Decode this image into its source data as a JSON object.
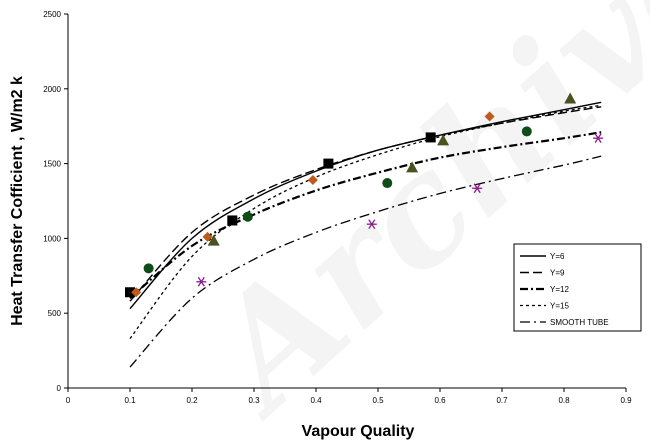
{
  "watermark": "Archive of SID",
  "chart_data": {
    "type": "line",
    "xlabel": "Vapour Quality",
    "ylabel": "Heat Transfer Cofficient , W/m2 k",
    "xlim": [
      0,
      0.9
    ],
    "ylim": [
      0,
      2500
    ],
    "x_ticks": [
      "0",
      "0.1",
      "0.2",
      "0.3",
      "0.4",
      "0.5",
      "0.6",
      "0.7",
      "0.8",
      "0.9"
    ],
    "y_ticks": [
      "0",
      "500",
      "1000",
      "1500",
      "2000",
      "2500"
    ],
    "grid": false,
    "legend_position": "right",
    "series": [
      {
        "name": "Y=6",
        "dash": "solid",
        "marker": "square",
        "marker_color": "#000000",
        "points": [
          [
            0.1,
            640
          ],
          [
            0.265,
            1120
          ],
          [
            0.42,
            1500
          ],
          [
            0.585,
            1675
          ]
        ],
        "fit": [
          [
            0.1,
            530
          ],
          [
            0.2,
            1000
          ],
          [
            0.3,
            1265
          ],
          [
            0.4,
            1450
          ],
          [
            0.5,
            1590
          ],
          [
            0.6,
            1690
          ],
          [
            0.7,
            1780
          ],
          [
            0.8,
            1860
          ],
          [
            0.86,
            1910
          ]
        ]
      },
      {
        "name": "Y=9",
        "dash": "long-dash",
        "marker": "diamond",
        "marker_color": "#c05a1c",
        "points": [
          [
            0.11,
            640
          ],
          [
            0.225,
            1010
          ],
          [
            0.395,
            1390
          ],
          [
            0.68,
            1815
          ]
        ],
        "fit": [
          [
            0.1,
            580
          ],
          [
            0.2,
            1040
          ],
          [
            0.3,
            1290
          ],
          [
            0.4,
            1460
          ],
          [
            0.5,
            1590
          ],
          [
            0.6,
            1690
          ],
          [
            0.7,
            1770
          ],
          [
            0.8,
            1840
          ],
          [
            0.86,
            1880
          ]
        ]
      },
      {
        "name": "Y=12",
        "dash": "dash-dot",
        "marker": "circle",
        "marker_color": "#0e4d18",
        "points": [
          [
            0.13,
            800
          ],
          [
            0.29,
            1145
          ],
          [
            0.515,
            1370
          ],
          [
            0.74,
            1715
          ]
        ],
        "fit": [
          [
            0.1,
            600
          ],
          [
            0.2,
            950
          ],
          [
            0.3,
            1160
          ],
          [
            0.4,
            1320
          ],
          [
            0.5,
            1440
          ],
          [
            0.6,
            1540
          ],
          [
            0.7,
            1610
          ],
          [
            0.8,
            1670
          ],
          [
            0.86,
            1710
          ]
        ]
      },
      {
        "name": "Y=15",
        "dash": "dotted",
        "marker": "triangle",
        "marker_color": "#4a5220",
        "points": [
          [
            0.235,
            985
          ],
          [
            0.555,
            1475
          ],
          [
            0.605,
            1655
          ],
          [
            0.81,
            1935
          ]
        ],
        "fit": [
          [
            0.1,
            330
          ],
          [
            0.2,
            880
          ],
          [
            0.3,
            1200
          ],
          [
            0.4,
            1410
          ],
          [
            0.5,
            1560
          ],
          [
            0.6,
            1680
          ],
          [
            0.7,
            1770
          ],
          [
            0.8,
            1850
          ],
          [
            0.86,
            1890
          ]
        ]
      },
      {
        "name": "SMOOTH TUBE",
        "dash": "long-dash-dot",
        "marker": "asterisk",
        "marker_color": "#8b1a8b",
        "points": [
          [
            0.215,
            710
          ],
          [
            0.49,
            1095
          ],
          [
            0.66,
            1335
          ],
          [
            0.855,
            1670
          ]
        ],
        "fit": [
          [
            0.1,
            140
          ],
          [
            0.2,
            600
          ],
          [
            0.3,
            860
          ],
          [
            0.4,
            1040
          ],
          [
            0.5,
            1180
          ],
          [
            0.6,
            1300
          ],
          [
            0.7,
            1400
          ],
          [
            0.8,
            1490
          ],
          [
            0.86,
            1550
          ]
        ]
      }
    ]
  }
}
